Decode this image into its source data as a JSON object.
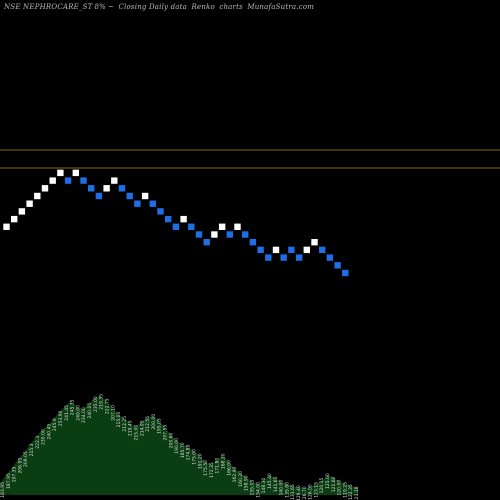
{
  "header": {
    "symbol": "NSE NEPHROCARE_ST",
    "change": "8%",
    "separator": "~",
    "description": "Closing Daily data",
    "chart_word": "Renko",
    "charts_word": "charts",
    "site": "MunafaSutra.com"
  },
  "colors": {
    "background": "#000000",
    "brick_up": "#ffffff",
    "brick_down": "#1e6ee6",
    "reference_line": "#8a6418",
    "volume_fill": "#0b3d12",
    "volume_label": "#dddddd"
  },
  "chart_data": {
    "type": "renko",
    "reference_lines": [
      1,
      2
    ],
    "bricks": [
      {
        "dir": "up",
        "level": 1
      },
      {
        "dir": "up",
        "level": 2
      },
      {
        "dir": "up",
        "level": 3
      },
      {
        "dir": "up",
        "level": 4
      },
      {
        "dir": "up",
        "level": 5
      },
      {
        "dir": "up",
        "level": 6
      },
      {
        "dir": "up",
        "level": 7
      },
      {
        "dir": "up",
        "level": 8
      },
      {
        "dir": "down",
        "level": 7
      },
      {
        "dir": "up",
        "level": 8
      },
      {
        "dir": "down",
        "level": 7
      },
      {
        "dir": "down",
        "level": 6
      },
      {
        "dir": "down",
        "level": 5
      },
      {
        "dir": "up",
        "level": 6
      },
      {
        "dir": "up",
        "level": 7
      },
      {
        "dir": "down",
        "level": 6
      },
      {
        "dir": "down",
        "level": 5
      },
      {
        "dir": "down",
        "level": 4
      },
      {
        "dir": "up",
        "level": 5
      },
      {
        "dir": "down",
        "level": 4
      },
      {
        "dir": "down",
        "level": 3
      },
      {
        "dir": "down",
        "level": 2
      },
      {
        "dir": "down",
        "level": 1
      },
      {
        "dir": "up",
        "level": 2
      },
      {
        "dir": "down",
        "level": 1
      },
      {
        "dir": "down",
        "level": 0
      },
      {
        "dir": "down",
        "level": -1
      },
      {
        "dir": "up",
        "level": 0
      },
      {
        "dir": "up",
        "level": 1
      },
      {
        "dir": "down",
        "level": 0
      },
      {
        "dir": "up",
        "level": 1
      },
      {
        "dir": "down",
        "level": 0
      },
      {
        "dir": "down",
        "level": -1
      },
      {
        "dir": "down",
        "level": -2
      },
      {
        "dir": "down",
        "level": -3
      },
      {
        "dir": "up",
        "level": -2
      },
      {
        "dir": "down",
        "level": -3
      },
      {
        "dir": "down",
        "level": -2
      },
      {
        "dir": "down",
        "level": -3
      },
      {
        "dir": "up",
        "level": -2
      },
      {
        "dir": "up",
        "level": -1
      },
      {
        "dir": "down",
        "level": -2
      },
      {
        "dir": "down",
        "level": -3
      },
      {
        "dir": "down",
        "level": -4
      },
      {
        "dir": "down",
        "level": -5
      }
    ],
    "volume_labels": [
      "183.95",
      "187.95",
      "197.35",
      "206.95",
      "209.05",
      "215.3",
      "222.3",
      "230.00",
      "240.45",
      "245.9",
      "253.90",
      "241.45",
      "245.35",
      "249.00",
      "234.00",
      "240.05",
      "235.00",
      "219.35",
      "222.75",
      "207.10",
      "215.00",
      "212.25",
      "219.45",
      "215.00",
      "214.95",
      "212.55",
      "200.00",
      "195.05",
      "207.55",
      "200.60",
      "190.00",
      "185.70",
      "174.85",
      "175.00",
      "191.20",
      "175.50",
      "172.35",
      "171.80",
      "168.20",
      "166.00",
      "162.90",
      "160.20",
      "158.90",
      "155.05",
      "154.00",
      "148.30",
      "145.40",
      "141.65",
      "140.00",
      "135.80",
      "131.65",
      "129.40",
      "126.70",
      "126.00",
      "123.15",
      "120.15",
      "125.00",
      "121.60",
      "120.00",
      "119.25",
      "122.35",
      "121.18"
    ],
    "volume_profile": [
      0.1,
      0.18,
      0.24,
      0.32,
      0.38,
      0.45,
      0.52,
      0.58,
      0.63,
      0.68,
      0.75,
      0.8,
      0.85,
      0.8,
      0.78,
      0.82,
      0.88,
      0.9,
      0.86,
      0.8,
      0.74,
      0.7,
      0.66,
      0.62,
      0.66,
      0.7,
      0.72,
      0.68,
      0.62,
      0.55,
      0.5,
      0.46,
      0.44,
      0.4,
      0.36,
      0.3,
      0.28,
      0.32,
      0.36,
      0.3,
      0.24,
      0.2,
      0.16,
      0.12,
      0.1,
      0.14,
      0.18,
      0.15,
      0.12,
      0.1,
      0.08,
      0.07,
      0.06,
      0.08,
      0.1,
      0.14,
      0.18,
      0.15,
      0.12,
      0.1,
      0.08,
      0.06
    ]
  }
}
